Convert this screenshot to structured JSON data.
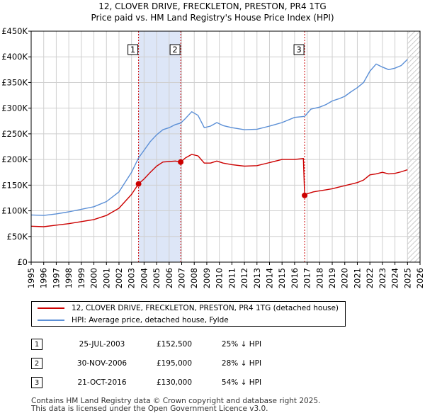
{
  "title_line1": "12, CLOVER DRIVE, FRECKLETON, PRESTON, PR4 1TG",
  "title_line2": "Price paid vs. HM Land Registry's House Price Index (HPI)",
  "colors": {
    "property": "#cc0000",
    "hpi": "#5b8fd6",
    "shade": "#dde6f7",
    "grid": "#cfcfcf",
    "vline": "#cc0000"
  },
  "legend": {
    "property_label": "12, CLOVER DRIVE, FRECKLETON, PRESTON, PR4 1TG (detached house)",
    "hpi_label": "HPI: Average price, detached house, Fylde"
  },
  "transactions": [
    {
      "num": "1",
      "date": "25-JUL-2003",
      "price": "£152,500",
      "delta": "25% ↓ HPI"
    },
    {
      "num": "2",
      "date": "30-NOV-2006",
      "price": "£195,000",
      "delta": "28% ↓ HPI"
    },
    {
      "num": "3",
      "date": "21-OCT-2016",
      "price": "£130,000",
      "delta": "54% ↓ HPI"
    }
  ],
  "footer_line1": "Contains HM Land Registry data © Crown copyright and database right 2025.",
  "footer_line2": "This data is licensed under the Open Government Licence v3.0.",
  "chart_data": {
    "type": "line",
    "xlim": [
      1995,
      2026
    ],
    "ylim": [
      0,
      450000
    ],
    "yticks": [
      0,
      50000,
      100000,
      150000,
      200000,
      250000,
      300000,
      350000,
      400000,
      450000
    ],
    "ytick_labels": [
      "£0",
      "£50K",
      "£100K",
      "£150K",
      "£200K",
      "£250K",
      "£300K",
      "£350K",
      "£400K",
      "£450K"
    ],
    "xticks": [
      1995,
      1996,
      1997,
      1998,
      1999,
      2000,
      2001,
      2002,
      2003,
      2004,
      2005,
      2006,
      2007,
      2008,
      2009,
      2010,
      2011,
      2012,
      2013,
      2014,
      2015,
      2016,
      2017,
      2018,
      2019,
      2020,
      2021,
      2022,
      2023,
      2024,
      2025,
      2026
    ],
    "shaded_ranges": [
      [
        2003.56,
        2006.92
      ]
    ],
    "hatched_range": [
      2025.0,
      2026
    ],
    "markers": [
      {
        "label": "1",
        "x": 2003.56,
        "y": 152500
      },
      {
        "label": "2",
        "x": 2006.92,
        "y": 195000
      },
      {
        "label": "3",
        "x": 2016.8,
        "y": 130000
      }
    ],
    "series": [
      {
        "name": "12, CLOVER DRIVE, FRECKLETON, PRESTON, PR4 1TG (detached house)",
        "color": "#cc0000",
        "x": [
          1995,
          1996,
          1997,
          1998,
          1999,
          2000,
          2001,
          2002,
          2003,
          2003.56,
          2004,
          2004.5,
          2005,
          2005.5,
          2006,
          2006.5,
          2006.92,
          2007.3,
          2007.8,
          2008.3,
          2008.8,
          2009.3,
          2009.8,
          2010.3,
          2011,
          2012,
          2013,
          2014,
          2015,
          2016,
          2016.7,
          2016.8,
          2017,
          2017.5,
          2018,
          2018.5,
          2019,
          2019.5,
          2020,
          2020.5,
          2021,
          2021.5,
          2022,
          2022.5,
          2023,
          2023.5,
          2024,
          2024.5,
          2025.0
        ],
        "values": [
          70000,
          69000,
          72000,
          75000,
          79000,
          83000,
          91000,
          105000,
          132000,
          152500,
          162000,
          175000,
          187000,
          195000,
          196000,
          197000,
          195000,
          203000,
          210000,
          207000,
          193000,
          193000,
          197000,
          193000,
          190000,
          187000,
          188000,
          194000,
          200000,
          200000,
          202000,
          130000,
          133000,
          137000,
          139000,
          141000,
          143000,
          146000,
          149000,
          152000,
          155000,
          160000,
          170000,
          172000,
          175000,
          172000,
          173000,
          176000,
          180000
        ]
      },
      {
        "name": "HPI: Average price, detached house, Fylde",
        "color": "#5b8fd6",
        "x": [
          1995,
          1996,
          1997,
          1998,
          1999,
          2000,
          2001,
          2002,
          2003,
          2003.56,
          2004,
          2004.5,
          2005,
          2005.5,
          2006,
          2006.5,
          2006.92,
          2007.3,
          2007.8,
          2008.3,
          2008.8,
          2009.3,
          2009.8,
          2010.3,
          2011,
          2012,
          2013,
          2014,
          2015,
          2016,
          2016.8,
          2017.3,
          2018,
          2018.5,
          2019,
          2019.5,
          2020,
          2020.5,
          2021,
          2021.5,
          2022,
          2022.5,
          2023,
          2023.5,
          2024,
          2024.5,
          2025.0
        ],
        "values": [
          92000,
          91000,
          94000,
          98000,
          103000,
          108000,
          118000,
          137000,
          175000,
          203000,
          218000,
          235000,
          248000,
          258000,
          262000,
          268000,
          271000,
          280000,
          293000,
          286000,
          262000,
          265000,
          272000,
          266000,
          262000,
          258000,
          259000,
          265000,
          272000,
          282000,
          284000,
          298000,
          302000,
          307000,
          314000,
          318000,
          323000,
          332000,
          340000,
          350000,
          372000,
          386000,
          380000,
          375000,
          378000,
          383000,
          395000
        ]
      }
    ]
  }
}
